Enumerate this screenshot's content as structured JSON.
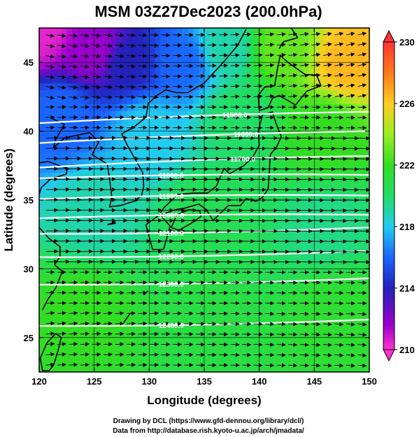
{
  "title": "MSM 03Z27Dec2023 (200.0hPa)",
  "map": {
    "xlabel": "Longitude (degrees)",
    "ylabel": "Latitude  (degrees)",
    "lon_range": [
      120,
      150
    ],
    "lat_range": [
      22.5,
      47.5
    ],
    "lon_ticks": [
      "120",
      "125",
      "130",
      "135",
      "140",
      "145",
      "150"
    ],
    "lat_ticks": [
      "25",
      "30",
      "35",
      "40",
      "45"
    ],
    "grid": true
  },
  "contours": {
    "field": "geopotential height",
    "levels": [
      {
        "label": "11500.0",
        "lon": 137.8,
        "lat": 41.2
      },
      {
        "label": "11600.0",
        "lon": 138.8,
        "lat": 39.8
      },
      {
        "label": "11700.0",
        "lon": 138.5,
        "lat": 38.0
      },
      {
        "label": "11800.0",
        "lon": 132.0,
        "lat": 36.8
      },
      {
        "label": "11900.0",
        "lon": 132.0,
        "lat": 35.3
      },
      {
        "label": "12000.0",
        "lon": 132.0,
        "lat": 33.9
      },
      {
        "label": "12100.0",
        "lon": 132.0,
        "lat": 32.6
      },
      {
        "label": "12200.0",
        "lon": 132.0,
        "lat": 30.9
      },
      {
        "label": "12300.0",
        "lon": 132.0,
        "lat": 28.9
      },
      {
        "label": "12400.0",
        "lon": 132.0,
        "lat": 25.9
      }
    ]
  },
  "colorbar": {
    "min": 210,
    "max": 230,
    "tick_labels": [
      "230",
      "226",
      "222",
      "218",
      "214",
      "210"
    ],
    "colors": [
      "#ff33cc",
      "#9900cc",
      "#2222bb",
      "#1a66ff",
      "#22ccee",
      "#22dd66",
      "#33dd22",
      "#99ee22",
      "#ffcc22",
      "#ff7a1a",
      "#ff3333"
    ]
  },
  "temperature_field": {
    "description_hint": "warm east",
    "anchors": [
      {
        "lon": 120,
        "lat": 47.5,
        "value": 210.5
      },
      {
        "lon": 125,
        "lat": 46,
        "value": 212
      },
      {
        "lon": 128,
        "lat": 45,
        "value": 214
      },
      {
        "lon": 133,
        "lat": 45,
        "value": 216
      },
      {
        "lon": 137,
        "lat": 46,
        "value": 219
      },
      {
        "lon": 142,
        "lat": 46,
        "value": 223
      },
      {
        "lon": 148,
        "lat": 45,
        "value": 226.5
      },
      {
        "lon": 122,
        "lat": 41,
        "value": 216
      },
      {
        "lon": 130,
        "lat": 40,
        "value": 218
      },
      {
        "lon": 138,
        "lat": 41,
        "value": 220
      },
      {
        "lon": 146,
        "lat": 40,
        "value": 222
      },
      {
        "lon": 125,
        "lat": 34,
        "value": 219
      },
      {
        "lon": 135,
        "lat": 34,
        "value": 220.5
      },
      {
        "lon": 146,
        "lat": 33,
        "value": 219.5
      },
      {
        "lon": 124,
        "lat": 27,
        "value": 222
      },
      {
        "lon": 135,
        "lat": 26,
        "value": 221
      },
      {
        "lon": 147,
        "lat": 27,
        "value": 221.5
      }
    ]
  },
  "credits": {
    "line1": "Drawing by DCL (https://www.gfd-dennou.org/library/dcl/)",
    "line2": "Data from http://database.rish.kyoto-u.ac.jp/arch/jmadata/"
  }
}
